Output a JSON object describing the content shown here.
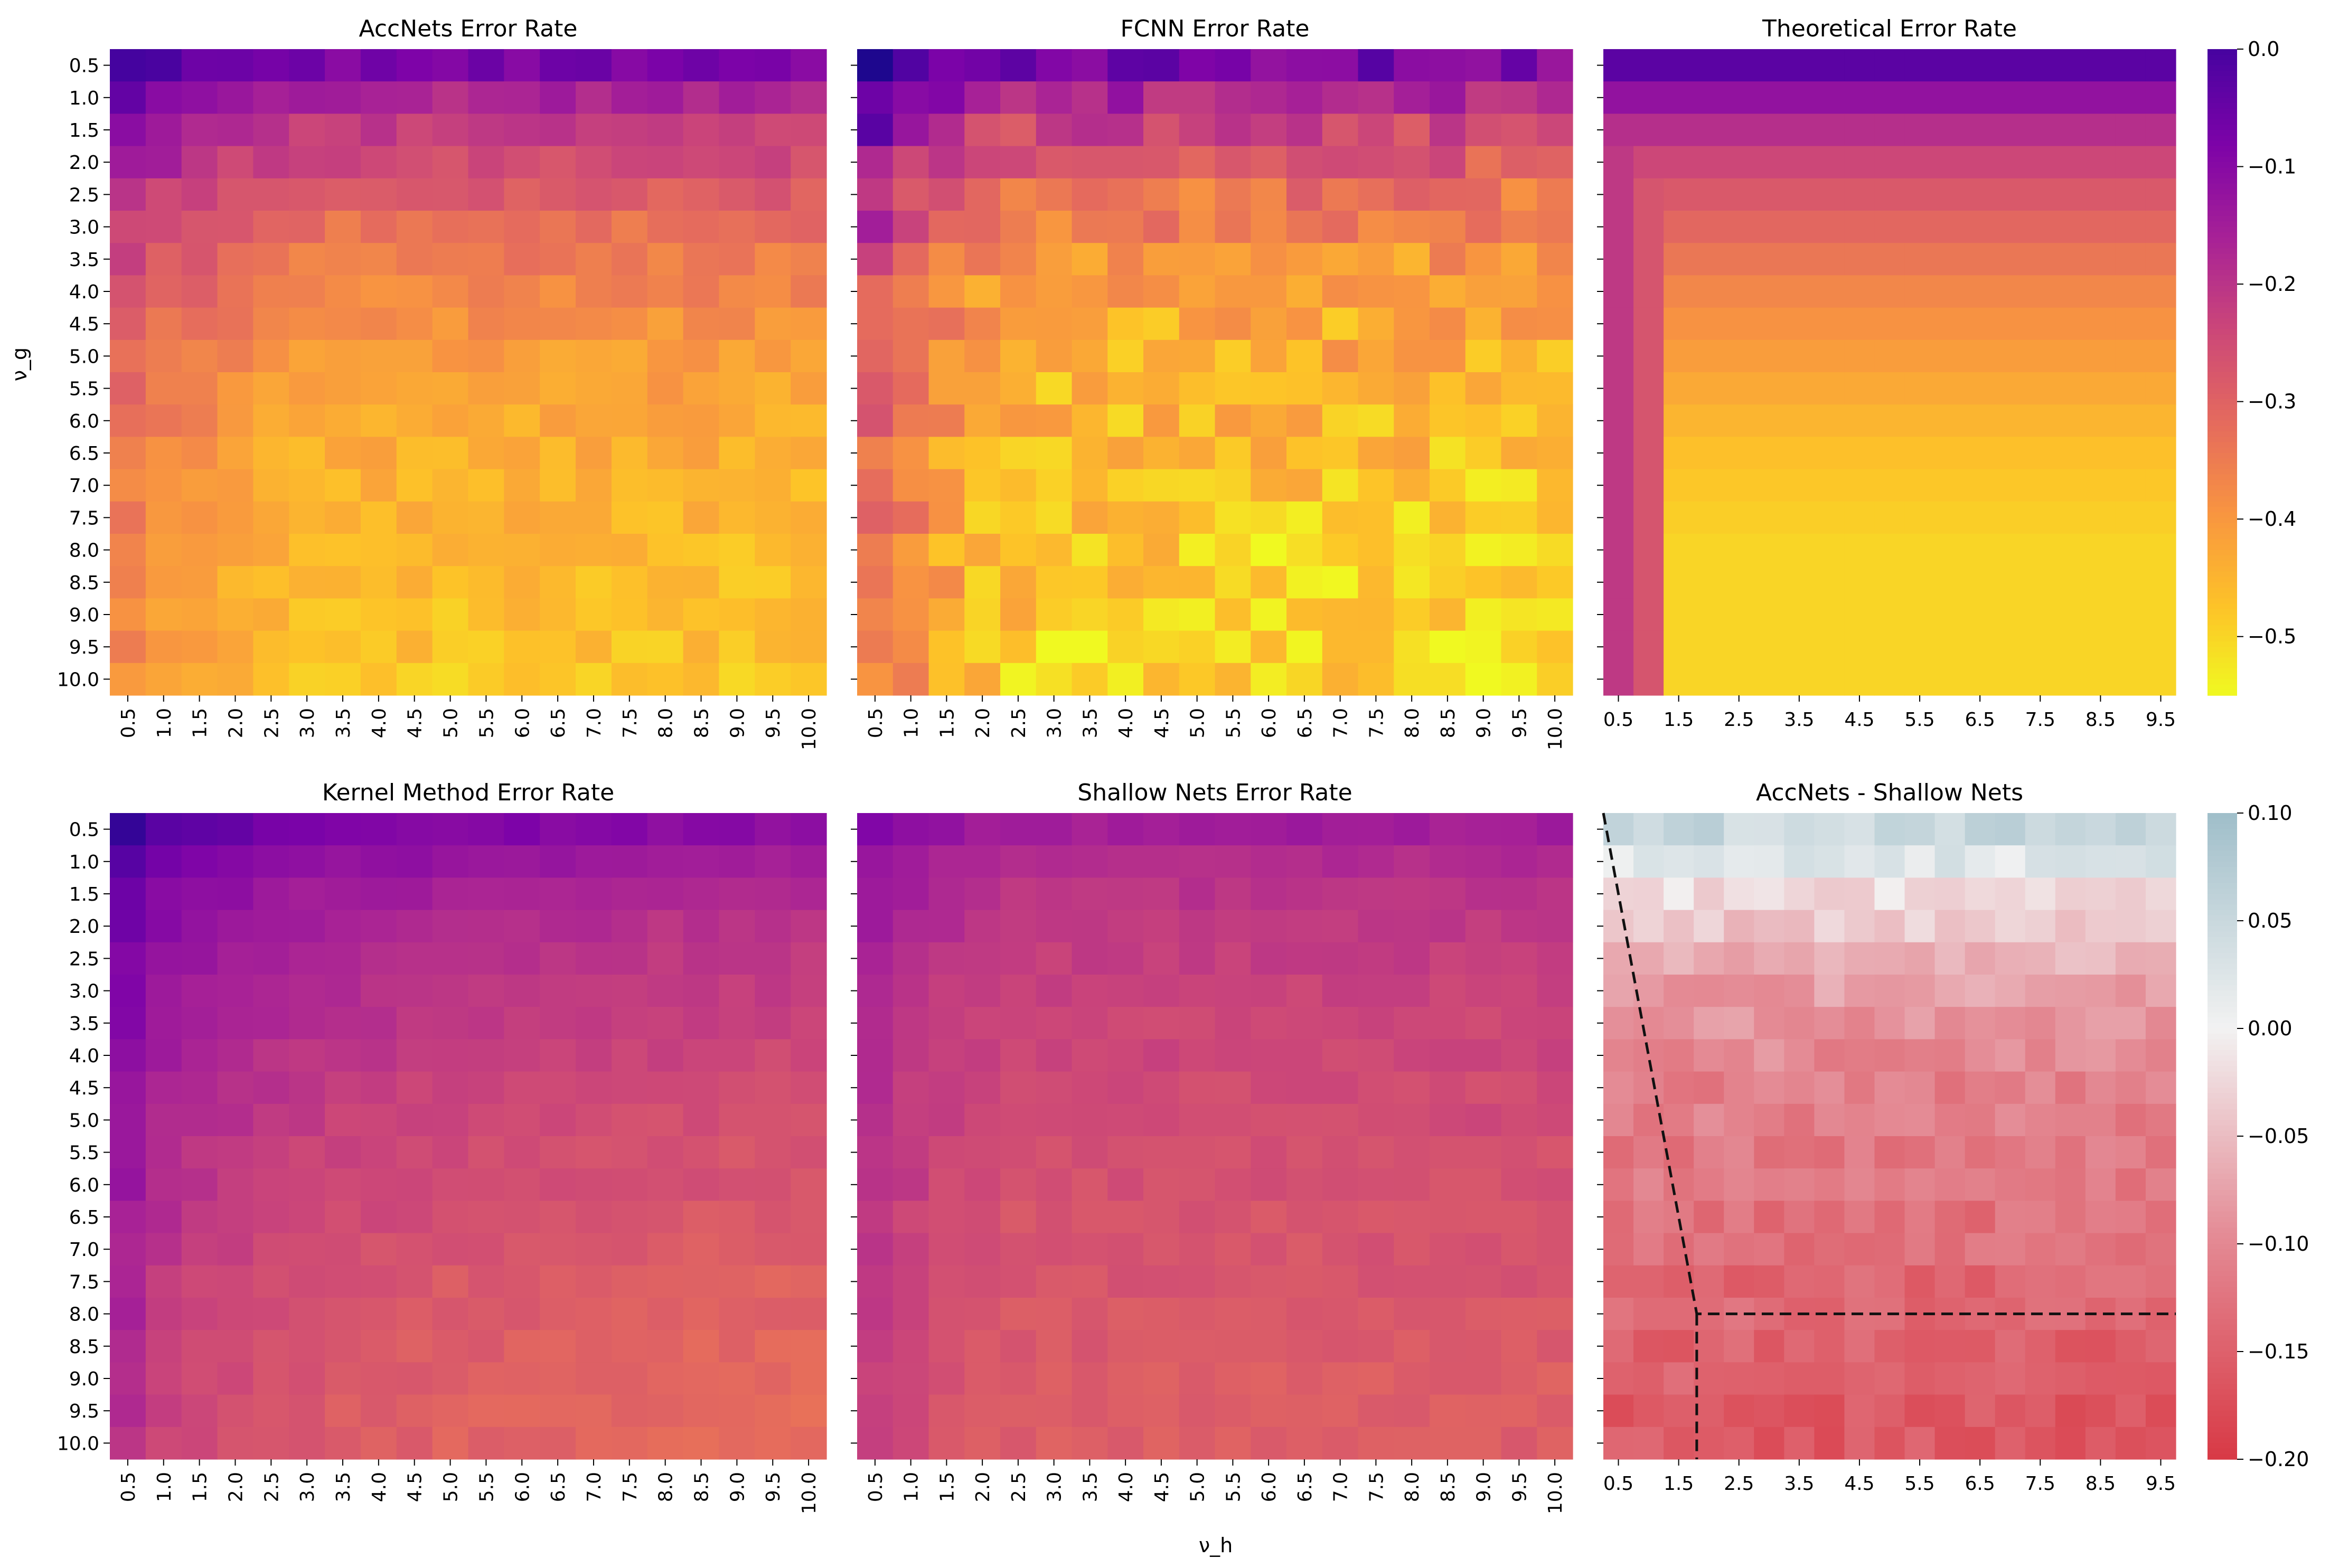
{
  "figure": {
    "xlabel": "ν_h",
    "ylabel": "ν_g"
  },
  "chart_data": [
    {
      "type": "heatmap",
      "title": "AccNets Error Rate",
      "cmap": "plasma",
      "vmin": -0.55,
      "vmax": 0.0,
      "x": [
        0.5,
        1.0,
        1.5,
        2.0,
        2.5,
        3.0,
        3.5,
        4.0,
        4.5,
        5.0,
        5.5,
        6.0,
        6.5,
        7.0,
        7.5,
        8.0,
        8.5,
        9.0,
        9.5,
        10.0
      ],
      "y": [
        0.5,
        1.0,
        1.5,
        2.0,
        2.5,
        3.0,
        3.5,
        4.0,
        4.5,
        5.0,
        5.5,
        6.0,
        6.5,
        7.0,
        7.5,
        8.0,
        8.5,
        9.0,
        9.5,
        10.0
      ],
      "xticklabels": [
        "0.5",
        "1.0",
        "1.5",
        "2.0",
        "2.5",
        "3.0",
        "3.5",
        "4.0",
        "4.5",
        "5.0",
        "5.5",
        "6.0",
        "6.5",
        "7.0",
        "7.5",
        "8.0",
        "8.5",
        "9.0",
        "9.5",
        "10.0"
      ],
      "yticklabels": [
        "0.5",
        "1.0",
        "1.5",
        "2.0",
        "2.5",
        "3.0",
        "3.5",
        "4.0",
        "4.5",
        "5.0",
        "5.5",
        "6.0",
        "6.5",
        "7.0",
        "7.5",
        "8.0",
        "8.5",
        "9.0",
        "9.5",
        "10.0"
      ],
      "z_by_row": [
        -0.08,
        -0.17,
        -0.22,
        -0.25,
        -0.29,
        -0.33,
        -0.35,
        -0.37,
        -0.39,
        -0.41,
        -0.42,
        -0.43,
        -0.44,
        -0.45,
        -0.45,
        -0.46,
        -0.46,
        -0.47,
        -0.47,
        -0.48
      ],
      "z_col_bias": [
        0.1,
        0.07,
        0.05,
        0.03,
        0.01,
        0,
        0,
        0,
        0,
        0,
        0,
        0,
        0,
        0,
        0,
        0,
        0,
        0,
        0,
        0
      ],
      "noise": 0.03
    },
    {
      "type": "heatmap",
      "title": "FCNN Error Rate",
      "cmap": "plasma",
      "vmin": -0.55,
      "vmax": 0.0,
      "x": [
        0.5,
        1.0,
        1.5,
        2.0,
        2.5,
        3.0,
        3.5,
        4.0,
        4.5,
        5.0,
        5.5,
        6.0,
        6.5,
        7.0,
        7.5,
        8.0,
        8.5,
        9.0,
        9.5,
        10.0
      ],
      "y": [
        0.5,
        1.0,
        1.5,
        2.0,
        2.5,
        3.0,
        3.5,
        4.0,
        4.5,
        5.0,
        5.5,
        6.0,
        6.5,
        7.0,
        7.5,
        8.0,
        8.5,
        9.0,
        9.5,
        10.0
      ],
      "xticklabels": [
        "0.5",
        "1.0",
        "1.5",
        "2.0",
        "2.5",
        "3.0",
        "3.5",
        "4.0",
        "4.5",
        "5.0",
        "5.5",
        "6.0",
        "6.5",
        "7.0",
        "7.5",
        "8.0",
        "8.5",
        "9.0",
        "9.5",
        "10.0"
      ],
      "yticklabels": [],
      "z_by_row": [
        -0.08,
        -0.17,
        -0.24,
        -0.29,
        -0.33,
        -0.37,
        -0.4,
        -0.42,
        -0.43,
        -0.44,
        -0.45,
        -0.46,
        -0.47,
        -0.48,
        -0.48,
        -0.49,
        -0.49,
        -0.49,
        -0.5,
        -0.5
      ],
      "z_col_bias": [
        0.16,
        0.1,
        0.06,
        0.03,
        0.01,
        0,
        0,
        0,
        0,
        0,
        0,
        0,
        0,
        0,
        0,
        0,
        0,
        0,
        0,
        0
      ],
      "noise": 0.06
    },
    {
      "type": "heatmap",
      "title": "Theoretical Error Rate",
      "cmap": "plasma",
      "vmin": -0.55,
      "vmax": 0.0,
      "theoretical": true,
      "x": [
        0.5,
        1.0,
        1.5,
        2.0,
        2.5,
        3.0,
        3.5,
        4.0,
        4.5,
        5.0,
        5.5,
        6.0,
        6.5,
        7.0,
        7.5,
        8.0,
        8.5,
        9.0,
        9.5
      ],
      "y": [
        0.5,
        1.0,
        1.5,
        2.0,
        2.5,
        3.0,
        3.5,
        4.0,
        4.5,
        5.0,
        5.5,
        6.0,
        6.5,
        7.0,
        7.5,
        8.0,
        8.5,
        9.0,
        9.5,
        10.0
      ],
      "xticklabels": [
        "0.5",
        "1.5",
        "2.5",
        "3.5",
        "4.5",
        "5.5",
        "6.5",
        "7.5",
        "8.5",
        "9.5"
      ],
      "yticklabels": [],
      "z_by_row": [
        -0.03,
        -0.12,
        -0.19,
        -0.24,
        -0.28,
        -0.31,
        -0.34,
        -0.37,
        -0.39,
        -0.41,
        -0.43,
        -0.45,
        -0.47,
        -0.48,
        -0.49,
        -0.5,
        -0.5,
        -0.5,
        -0.5,
        -0.5
      ],
      "z_col_cap": [
        -0.21,
        -0.27,
        -0.5
      ],
      "noise": 0
    },
    {
      "type": "heatmap",
      "title": "Kernel Method Error Rate",
      "cmap": "plasma",
      "vmin": -0.55,
      "vmax": 0.0,
      "x": [
        0.5,
        1.0,
        1.5,
        2.0,
        2.5,
        3.0,
        3.5,
        4.0,
        4.5,
        5.0,
        5.5,
        6.0,
        6.5,
        7.0,
        7.5,
        8.0,
        8.5,
        9.0,
        9.5,
        10.0
      ],
      "y": [
        0.5,
        1.0,
        1.5,
        2.0,
        2.5,
        3.0,
        3.5,
        4.0,
        4.5,
        5.0,
        5.5,
        6.0,
        6.5,
        7.0,
        7.5,
        8.0,
        8.5,
        9.0,
        9.5,
        10.0
      ],
      "xticklabels": [
        "0.5",
        "1.0",
        "1.5",
        "2.0",
        "2.5",
        "3.0",
        "3.5",
        "4.0",
        "4.5",
        "5.0",
        "5.5",
        "6.0",
        "6.5",
        "7.0",
        "7.5",
        "8.0",
        "8.5",
        "9.0",
        "9.5",
        "10.0"
      ],
      "yticklabels": [
        "0.5",
        "1.0",
        "1.5",
        "2.0",
        "2.5",
        "3.0",
        "3.5",
        "4.0",
        "4.5",
        "5.0",
        "5.5",
        "6.0",
        "6.5",
        "7.0",
        "7.5",
        "8.0",
        "8.5",
        "9.0",
        "9.5",
        "10.0"
      ],
      "z_by_row": [
        -0.07,
        -0.11,
        -0.14,
        -0.16,
        -0.17,
        -0.18,
        -0.19,
        -0.2,
        -0.21,
        -0.22,
        -0.23,
        -0.23,
        -0.24,
        -0.25,
        -0.26,
        -0.26,
        -0.27,
        -0.27,
        -0.28,
        -0.28
      ],
      "z_col_bias": [
        0.09,
        0.05,
        0.03,
        0.02,
        0.01,
        0,
        -0.005,
        -0.01,
        -0.015,
        -0.02,
        -0.02,
        -0.025,
        -0.025,
        -0.03,
        -0.03,
        -0.035,
        -0.035,
        -0.04,
        -0.04,
        -0.04
      ],
      "noise": 0.015
    },
    {
      "type": "heatmap",
      "title": "Shallow Nets Error Rate",
      "cmap": "plasma",
      "vmin": -0.55,
      "vmax": 0.0,
      "x": [
        0.5,
        1.0,
        1.5,
        2.0,
        2.5,
        3.0,
        3.5,
        4.0,
        4.5,
        5.0,
        5.5,
        6.0,
        6.5,
        7.0,
        7.5,
        8.0,
        8.5,
        9.0,
        9.5,
        10.0
      ],
      "y": [
        0.5,
        1.0,
        1.5,
        2.0,
        2.5,
        3.0,
        3.5,
        4.0,
        4.5,
        5.0,
        5.5,
        6.0,
        6.5,
        7.0,
        7.5,
        8.0,
        8.5,
        9.0,
        9.5,
        10.0
      ],
      "xticklabels": [
        "0.5",
        "1.0",
        "1.5",
        "2.0",
        "2.5",
        "3.0",
        "3.5",
        "4.0",
        "4.5",
        "5.0",
        "5.5",
        "6.0",
        "6.5",
        "7.0",
        "7.5",
        "8.0",
        "8.5",
        "9.0",
        "9.5",
        "10.0"
      ],
      "yticklabels": [],
      "z_by_row": [
        -0.15,
        -0.18,
        -0.2,
        -0.21,
        -0.22,
        -0.23,
        -0.24,
        -0.24,
        -0.25,
        -0.25,
        -0.26,
        -0.26,
        -0.27,
        -0.27,
        -0.27,
        -0.28,
        -0.28,
        -0.29,
        -0.29,
        -0.29
      ],
      "z_col_bias": [
        0.06,
        0.04,
        0.02,
        0.01,
        0,
        0,
        0,
        0,
        0,
        0,
        0,
        0,
        0,
        0,
        0,
        0,
        0,
        0,
        0,
        0
      ],
      "noise": 0.015
    },
    {
      "type": "heatmap",
      "title": "AccNets - Shallow Nets",
      "cmap": "diverging",
      "vmin": -0.2,
      "vmax": 0.1,
      "x": [
        0.5,
        1.0,
        1.5,
        2.0,
        2.5,
        3.0,
        3.5,
        4.0,
        4.5,
        5.0,
        5.5,
        6.0,
        6.5,
        7.0,
        7.5,
        8.0,
        8.5,
        9.0,
        9.5
      ],
      "y": [
        0.5,
        1.0,
        1.5,
        2.0,
        2.5,
        3.0,
        3.5,
        4.0,
        4.5,
        5.0,
        5.5,
        6.0,
        6.5,
        7.0,
        7.5,
        8.0,
        8.5,
        9.0,
        9.5,
        10.0
      ],
      "xticklabels": [
        "0.5",
        "1.5",
        "2.5",
        "3.5",
        "4.5",
        "5.5",
        "6.5",
        "7.5",
        "8.5",
        "9.5"
      ],
      "yticklabels": [],
      "z_by_row": [
        0.05,
        0.02,
        -0.02,
        -0.04,
        -0.06,
        -0.08,
        -0.09,
        -0.1,
        -0.11,
        -0.11,
        -0.12,
        -0.12,
        -0.13,
        -0.13,
        -0.14,
        -0.14,
        -0.15,
        -0.15,
        -0.16,
        -0.16
      ],
      "noise": 0.02,
      "dashed_boundary": [
        [
          0.5,
          0.5
        ],
        [
          1.8,
          8.0
        ],
        [
          10.0,
          8.0
        ]
      ],
      "dashed_vertical_x": 1.8
    }
  ],
  "colorbars": [
    {
      "ticks": [
        "0.0",
        "−0.1",
        "−0.2",
        "−0.3",
        "−0.4",
        "−0.5"
      ],
      "values": [
        0,
        -0.1,
        -0.2,
        -0.3,
        -0.4,
        -0.5
      ],
      "vmin": -0.55,
      "vmax": 0.0,
      "cmap": "plasma"
    },
    {
      "ticks": [
        "0.10",
        "0.05",
        "0.00",
        "−0.05",
        "−0.10",
        "−0.15",
        "−0.20"
      ],
      "values": [
        0.1,
        0.05,
        0,
        -0.05,
        -0.1,
        -0.15,
        -0.2
      ],
      "vmin": -0.2,
      "vmax": 0.1,
      "cmap": "diverging"
    }
  ]
}
